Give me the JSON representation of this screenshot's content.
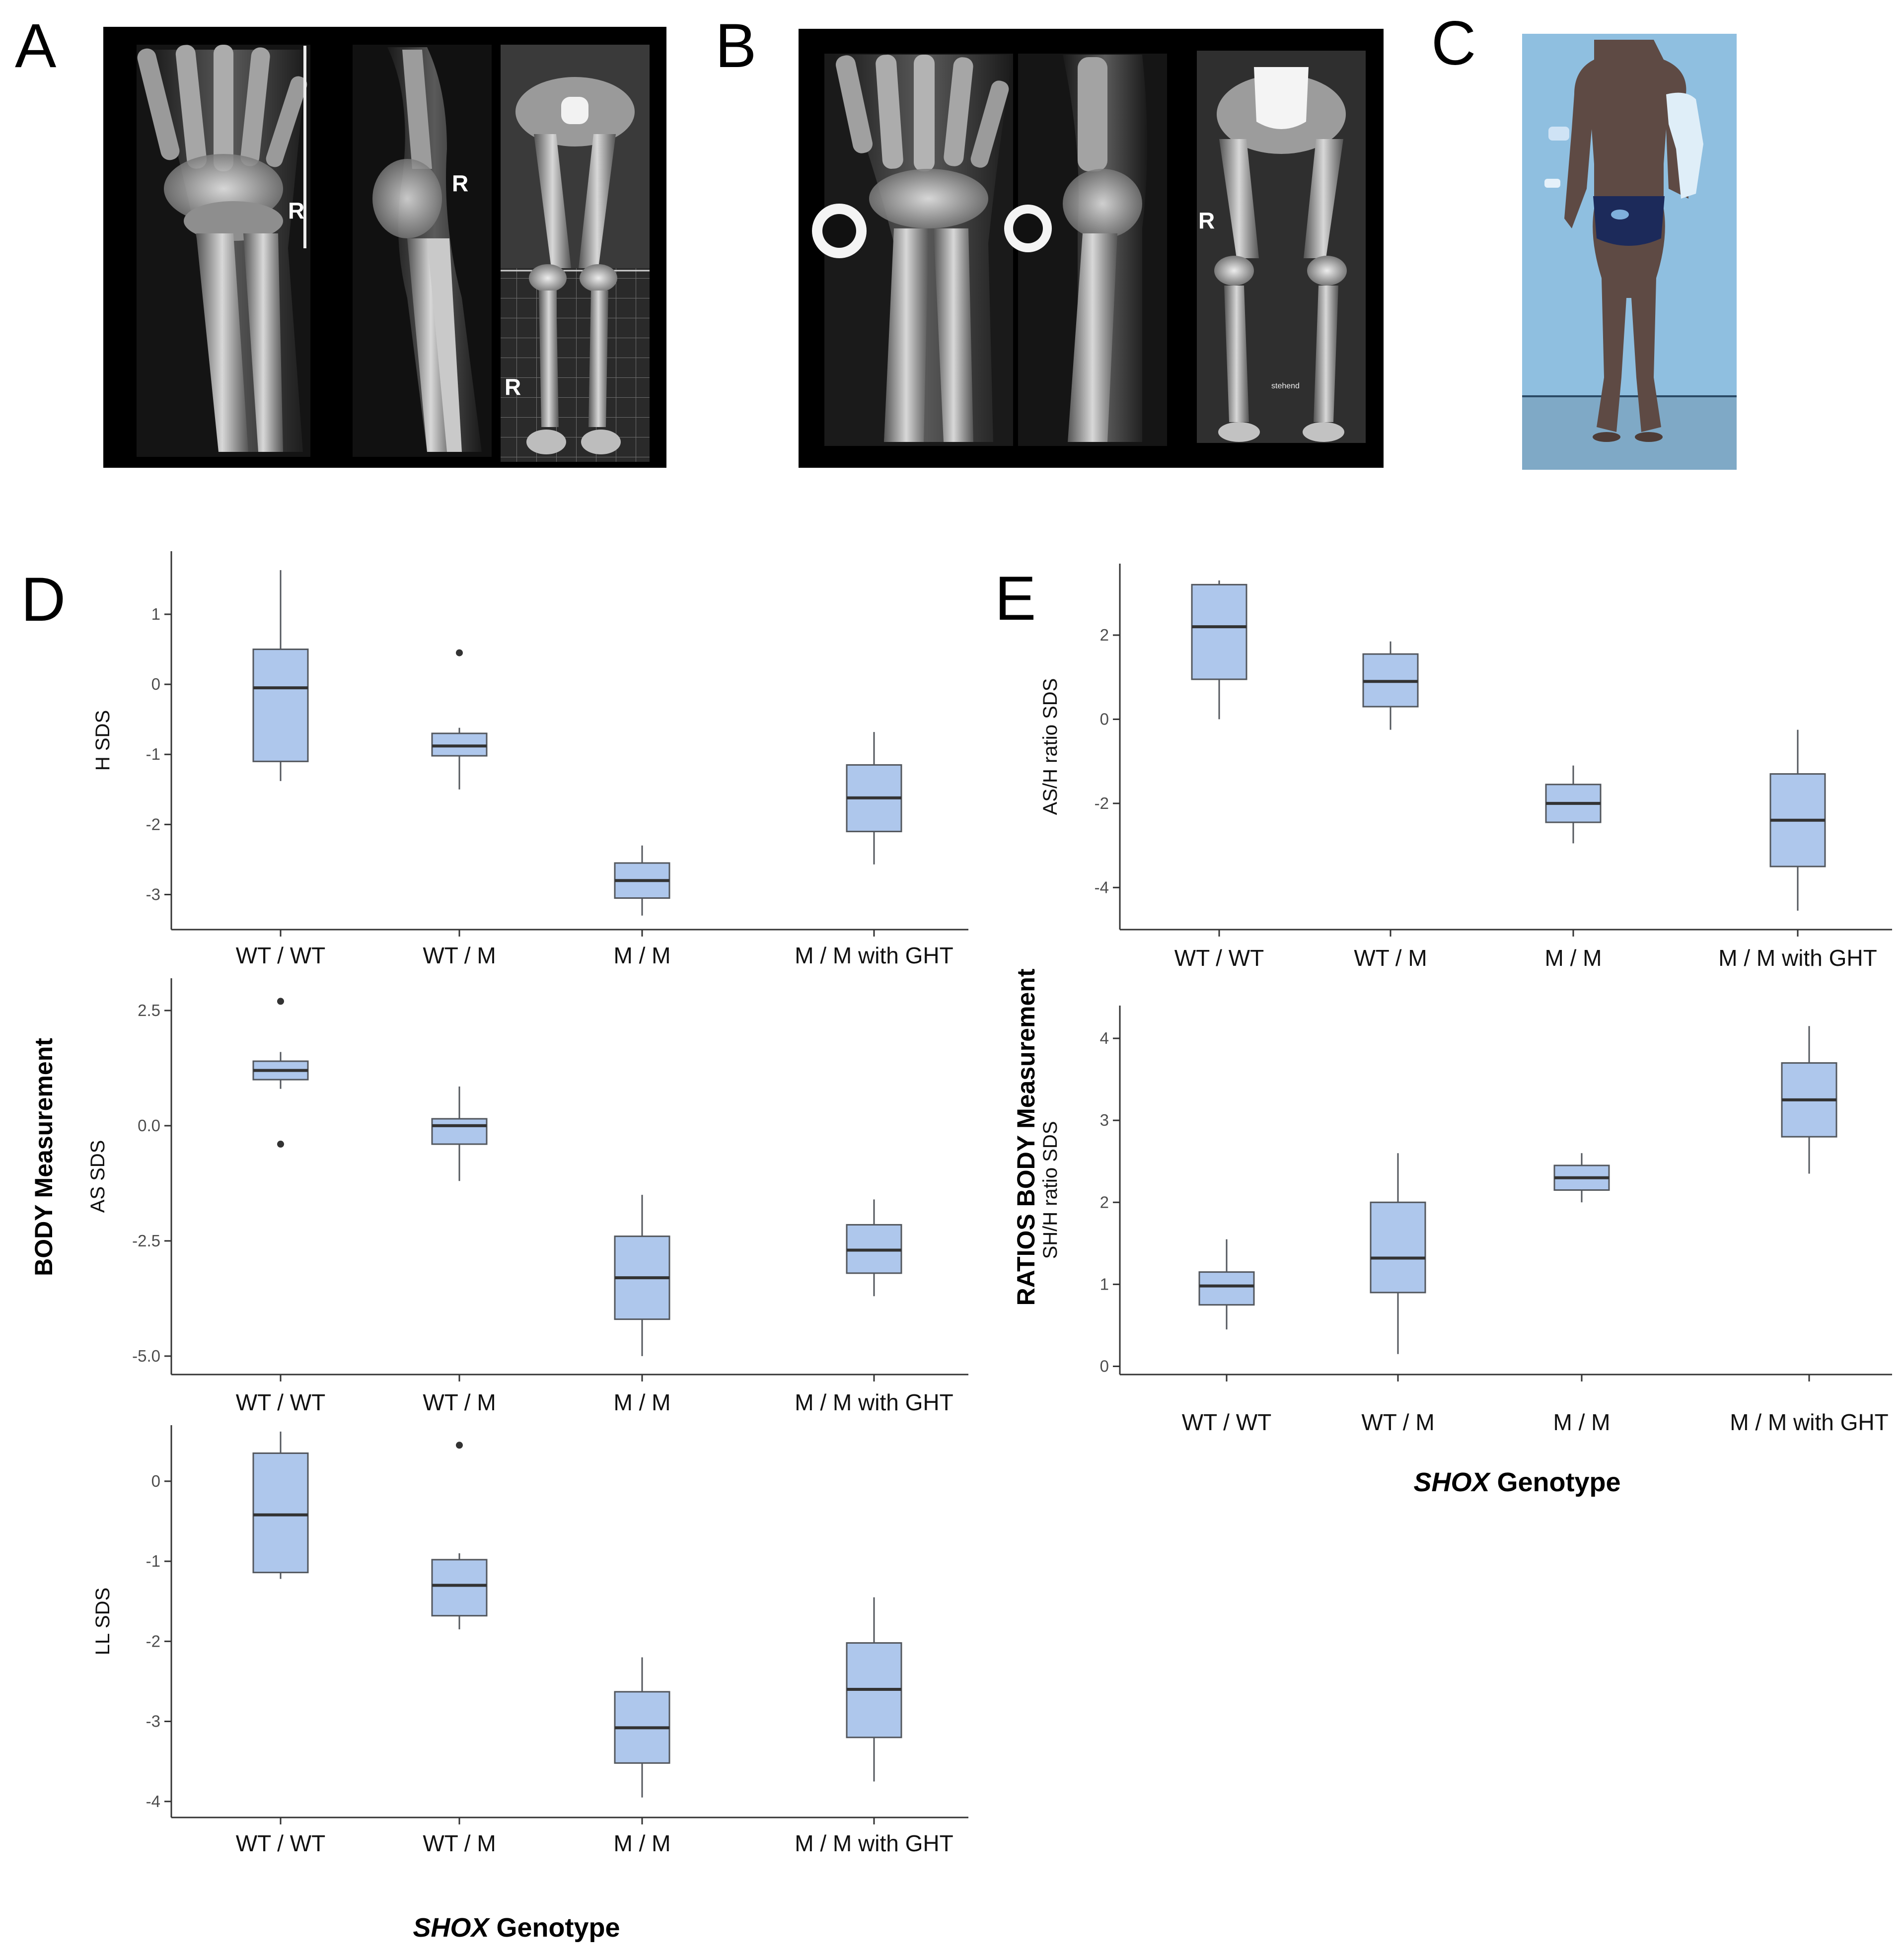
{
  "panels": {
    "a": "A",
    "b": "B",
    "c": "C",
    "d": "D",
    "e": "E"
  },
  "xray_labels": {
    "a_wrist_ap": "R",
    "a_wrist_lat": "R",
    "a_legs": "R",
    "b_legs": "R",
    "b_legs_note": "stehend"
  },
  "axis_titles": {
    "d_left": "BODY Measurement",
    "e_left": "RATIOS BODY Measurement",
    "d_bottom_italic": "SHOX",
    "d_bottom_rest": " Genotype",
    "e_bottom_italic": "SHOX",
    "e_bottom_rest": " Genotype"
  },
  "colors": {
    "box_fill": "#aec7ec",
    "box_stroke": "#53575d",
    "median": "#333333",
    "xray_bg": "#000000",
    "photo_bg": "#8fbfe0"
  },
  "chart_data": [
    {
      "id": "D-H",
      "type": "box",
      "ylabel": "H SDS",
      "categories": [
        "WT / WT",
        "WT / M",
        "M / M",
        "M / M with GHT"
      ],
      "yticks": [
        "1",
        "0",
        "-1",
        "-2",
        "-3"
      ],
      "ylim": [
        -3.5,
        1.9
      ],
      "boxes": [
        {
          "min": -1.38,
          "q1": -1.1,
          "median": -0.05,
          "q3": 0.5,
          "max": 1.63,
          "outliers": []
        },
        {
          "min": -1.5,
          "q1": -1.02,
          "median": -0.88,
          "q3": -0.7,
          "max": -0.62,
          "outliers": [
            0.45
          ]
        },
        {
          "min": -3.3,
          "q1": -3.05,
          "median": -2.8,
          "q3": -2.55,
          "max": -2.3,
          "outliers": []
        },
        {
          "min": -2.57,
          "q1": -2.1,
          "median": -1.62,
          "q3": -1.15,
          "max": -0.68,
          "outliers": []
        }
      ]
    },
    {
      "id": "D-AS",
      "type": "box",
      "ylabel": "AS SDS",
      "categories": [
        "WT / WT",
        "WT / M",
        "M / M",
        "M / M with GHT"
      ],
      "yticks": [
        "2.5",
        "0.0",
        "-2.5",
        "-5.0"
      ],
      "ylim": [
        -5.4,
        3.2
      ],
      "boxes": [
        {
          "min": 0.8,
          "q1": 1.0,
          "median": 1.2,
          "q3": 1.4,
          "max": 1.6,
          "outliers": [
            2.7,
            -0.4
          ]
        },
        {
          "min": -1.2,
          "q1": -0.4,
          "median": 0.0,
          "q3": 0.15,
          "max": 0.85,
          "outliers": []
        },
        {
          "min": -5.0,
          "q1": -4.2,
          "median": -3.3,
          "q3": -2.4,
          "max": -1.5,
          "outliers": []
        },
        {
          "min": -3.7,
          "q1": -3.2,
          "median": -2.7,
          "q3": -2.15,
          "max": -1.6,
          "outliers": []
        }
      ]
    },
    {
      "id": "D-LL",
      "type": "box",
      "ylabel": "LL SDS",
      "categories": [
        "WT / WT",
        "WT / M",
        "M / M",
        "M / M with GHT"
      ],
      "yticks": [
        "0",
        "-1",
        "-2",
        "-3",
        "-4"
      ],
      "ylim": [
        -4.2,
        0.7
      ],
      "boxes": [
        {
          "min": -1.22,
          "q1": -1.14,
          "median": -0.42,
          "q3": 0.35,
          "max": 0.62,
          "outliers": []
        },
        {
          "min": -1.85,
          "q1": -1.68,
          "median": -1.3,
          "q3": -0.98,
          "max": -0.9,
          "outliers": [
            0.45
          ]
        },
        {
          "min": -3.95,
          "q1": -3.52,
          "median": -3.08,
          "q3": -2.63,
          "max": -2.2,
          "outliers": []
        },
        {
          "min": -3.75,
          "q1": -3.2,
          "median": -2.6,
          "q3": -2.02,
          "max": -1.45,
          "outliers": []
        }
      ]
    },
    {
      "id": "E-ASH",
      "type": "box",
      "ylabel": "AS/H ratio SDS",
      "categories": [
        "WT / WT",
        "WT / M",
        "M / M",
        "M / M with GHT"
      ],
      "yticks": [
        "2",
        "0",
        "-2",
        "-4"
      ],
      "ylim": [
        -5.0,
        3.7
      ],
      "boxes": [
        {
          "min": 0.0,
          "q1": 0.95,
          "median": 2.2,
          "q3": 3.2,
          "max": 3.3,
          "outliers": []
        },
        {
          "min": -0.25,
          "q1": 0.3,
          "median": 0.9,
          "q3": 1.55,
          "max": 1.85,
          "outliers": []
        },
        {
          "min": -2.95,
          "q1": -2.45,
          "median": -2.0,
          "q3": -1.55,
          "max": -1.1,
          "outliers": []
        },
        {
          "min": -4.55,
          "q1": -3.5,
          "median": -2.4,
          "q3": -1.3,
          "max": -0.25,
          "outliers": []
        }
      ]
    },
    {
      "id": "E-SHH",
      "type": "box",
      "ylabel": "SH/H ratio SDS",
      "categories": [
        "WT / WT",
        "WT / M",
        "M / M",
        "M / M with GHT"
      ],
      "yticks": [
        "4",
        "3",
        "2",
        "1",
        "0"
      ],
      "ylim": [
        -0.1,
        4.4
      ],
      "boxes": [
        {
          "min": 0.45,
          "q1": 0.75,
          "median": 0.98,
          "q3": 1.15,
          "max": 1.55,
          "outliers": []
        },
        {
          "min": 0.15,
          "q1": 0.9,
          "median": 1.32,
          "q3": 2.0,
          "max": 2.6,
          "outliers": []
        },
        {
          "min": 2.0,
          "q1": 2.15,
          "median": 2.3,
          "q3": 2.45,
          "max": 2.6,
          "outliers": []
        },
        {
          "min": 2.35,
          "q1": 2.8,
          "median": 3.25,
          "q3": 3.7,
          "max": 4.15,
          "outliers": []
        }
      ]
    }
  ]
}
